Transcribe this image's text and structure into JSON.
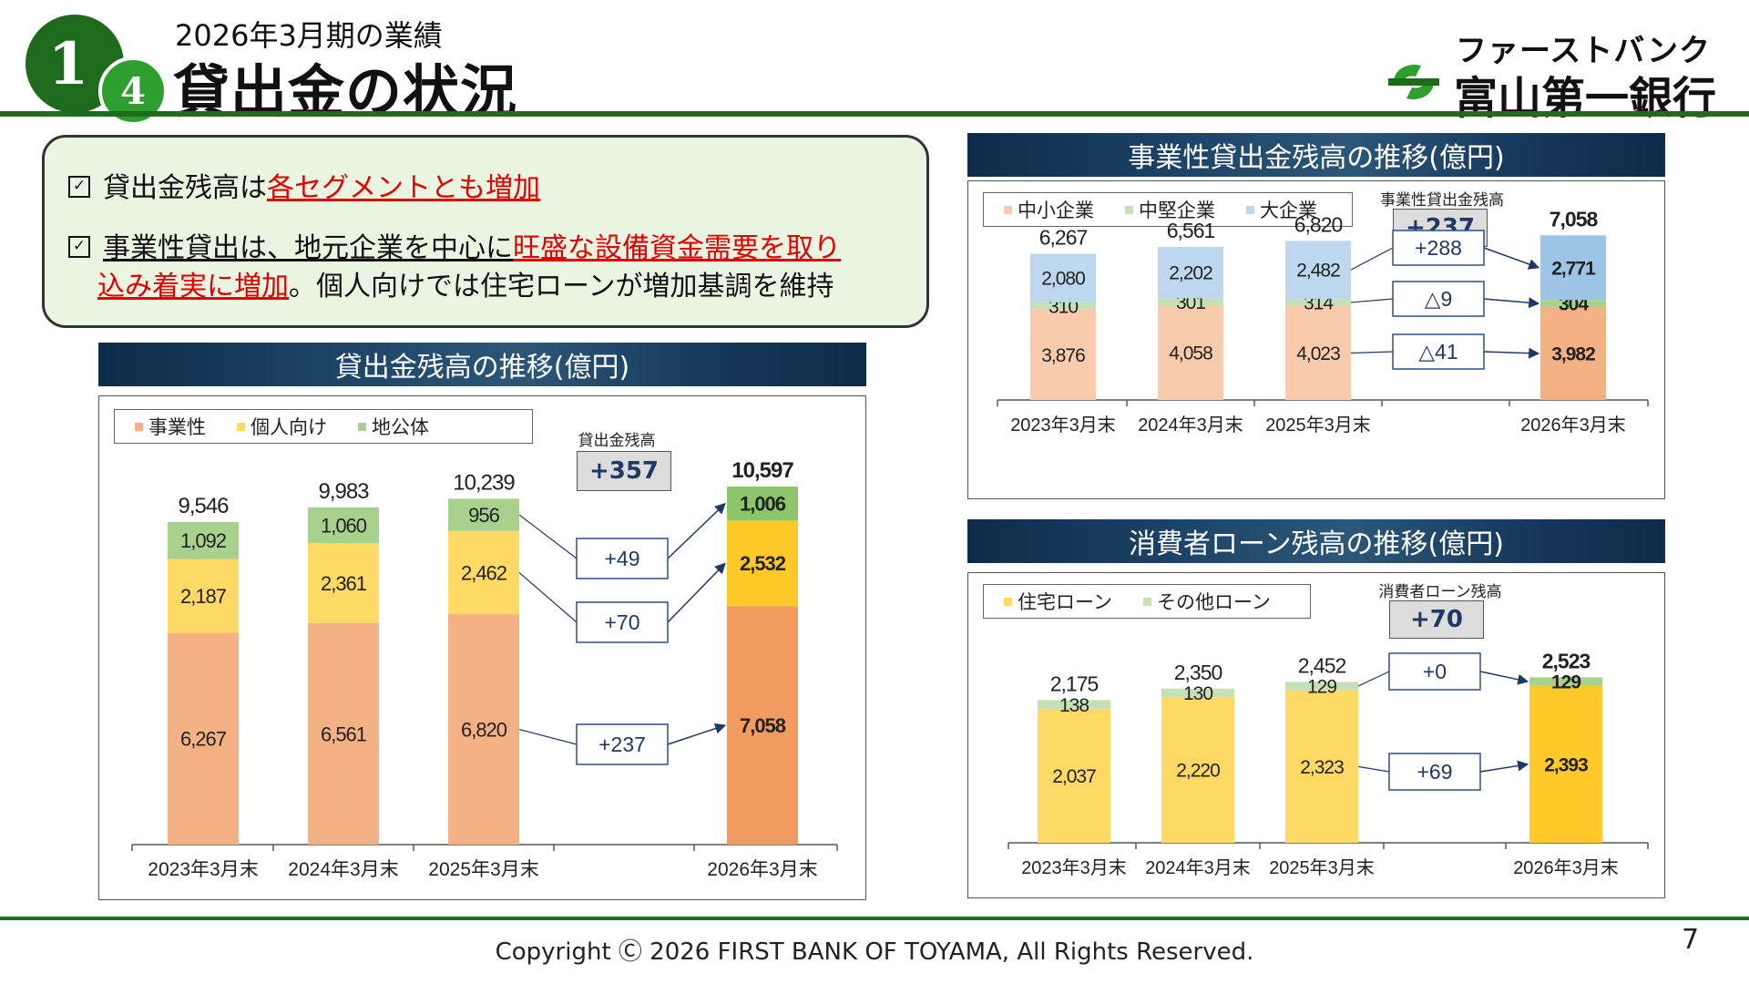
{
  "header": {
    "badge_main": "1",
    "badge_sub": "4",
    "subtitle": "2026年3月期の業績",
    "title": "貸出金の状況",
    "logo_kana": "ファーストバンク",
    "logo_name": "富山第一銀行"
  },
  "summary": {
    "line1_pre": "貸出金残高は",
    "line1_red": "各セグメントとも増加",
    "line2_pre": "事業性貸出は、地元企業を中心に",
    "line2_red": "旺盛な設備資金需要を取り",
    "line3_red": "込み着実に増加",
    "line3_post": "。個人向けでは住宅ローンが増加基調を維持"
  },
  "chart_data": [
    {
      "id": "loans",
      "type": "bar",
      "stacked": true,
      "title": "貸出金残高の推移(億円)",
      "categories": [
        "2023年3月末",
        "2024年3月末",
        "2025年3月末",
        "2026年3月末"
      ],
      "series": [
        {
          "name": "事業性",
          "values": [
            6267,
            6561,
            6820,
            7058
          ],
          "color": "#f4b183",
          "highlight": "#f29b61"
        },
        {
          "name": "個人向け",
          "values": [
            2187,
            2361,
            2462,
            2532
          ],
          "color": "#ffd966",
          "highlight": "#ffc929"
        },
        {
          "name": "地公体",
          "values": [
            1092,
            1060,
            956,
            1006
          ],
          "color": "#a9d18e",
          "highlight": "#8cc56a"
        }
      ],
      "value_labels": [
        [
          "6,267",
          "6,561",
          "6,820",
          "7,058"
        ],
        [
          "2,187",
          "2,361",
          "2,462",
          "2,532"
        ],
        [
          "1,092",
          "1,060",
          "956",
          "1,006"
        ]
      ],
      "totals": [
        9546,
        9983,
        10239,
        10597
      ],
      "total_labels": [
        "9,546",
        "9,983",
        "10,239",
        "10,597"
      ],
      "total_caption": "貸出金残高",
      "total_change": "+357",
      "changes": [
        "+237",
        "+70",
        "+49"
      ],
      "ylim": [
        0,
        12000
      ]
    },
    {
      "id": "business",
      "type": "bar",
      "stacked": true,
      "title": "事業性貸出金残高の推移(億円)",
      "categories": [
        "2023年3月末",
        "2024年3月末",
        "2025年3月末",
        "2026年3月末"
      ],
      "series": [
        {
          "name": "中小企業",
          "values": [
            3876,
            4058,
            4023,
            3982
          ],
          "color": "#f8cbad",
          "highlight": "#f4b183"
        },
        {
          "name": "中堅企業",
          "values": [
            310,
            301,
            314,
            304
          ],
          "color": "#c5e0b4",
          "highlight": "#a9d18e"
        },
        {
          "name": "大企業",
          "values": [
            2080,
            2202,
            2482,
            2771
          ],
          "color": "#bdd7ee",
          "highlight": "#9dc3e6"
        }
      ],
      "value_labels": [
        [
          "3,876",
          "4,058",
          "4,023",
          "3,982"
        ],
        [
          "310",
          "301",
          "314",
          "304"
        ],
        [
          "2,080",
          "2,202",
          "2,482",
          "2,771"
        ]
      ],
      "totals": [
        6267,
        6561,
        6820,
        7058
      ],
      "total_labels": [
        "6,267",
        "6,561",
        "6,820",
        "7,058"
      ],
      "total_caption": "事業性貸出金残高",
      "total_change": "+237",
      "changes": [
        "△41",
        "△9",
        "+288"
      ],
      "ylim": [
        0,
        8200
      ]
    },
    {
      "id": "consumer",
      "type": "bar",
      "stacked": true,
      "title": "消費者ローン残高の推移(億円)",
      "categories": [
        "2023年3月末",
        "2024年3月末",
        "2025年3月末",
        "2026年3月末"
      ],
      "series": [
        {
          "name": "住宅ローン",
          "values": [
            2037,
            2220,
            2323,
            2393
          ],
          "color": "#ffd966",
          "highlight": "#ffc929"
        },
        {
          "name": "その他ローン",
          "values": [
            138,
            130,
            129,
            129
          ],
          "color": "#c5e0b4",
          "highlight": "#a9d18e"
        }
      ],
      "value_labels": [
        [
          "2,037",
          "2,220",
          "2,323",
          "2,393"
        ],
        [
          "138",
          "130",
          "129",
          "129"
        ]
      ],
      "totals": [
        2175,
        2350,
        2452,
        2523
      ],
      "total_labels": [
        "2,175",
        "2,350",
        "2,452",
        "2,523"
      ],
      "total_caption": "消費者ローン残高",
      "total_change": "+70",
      "changes": [
        "+69",
        "+0"
      ],
      "ylim": [
        0,
        3000
      ]
    }
  ],
  "footer": {
    "copyright": "Copyright Ⓒ 2026 FIRST BANK OF TOYAMA, All Rights Reserved.",
    "page": "7"
  }
}
